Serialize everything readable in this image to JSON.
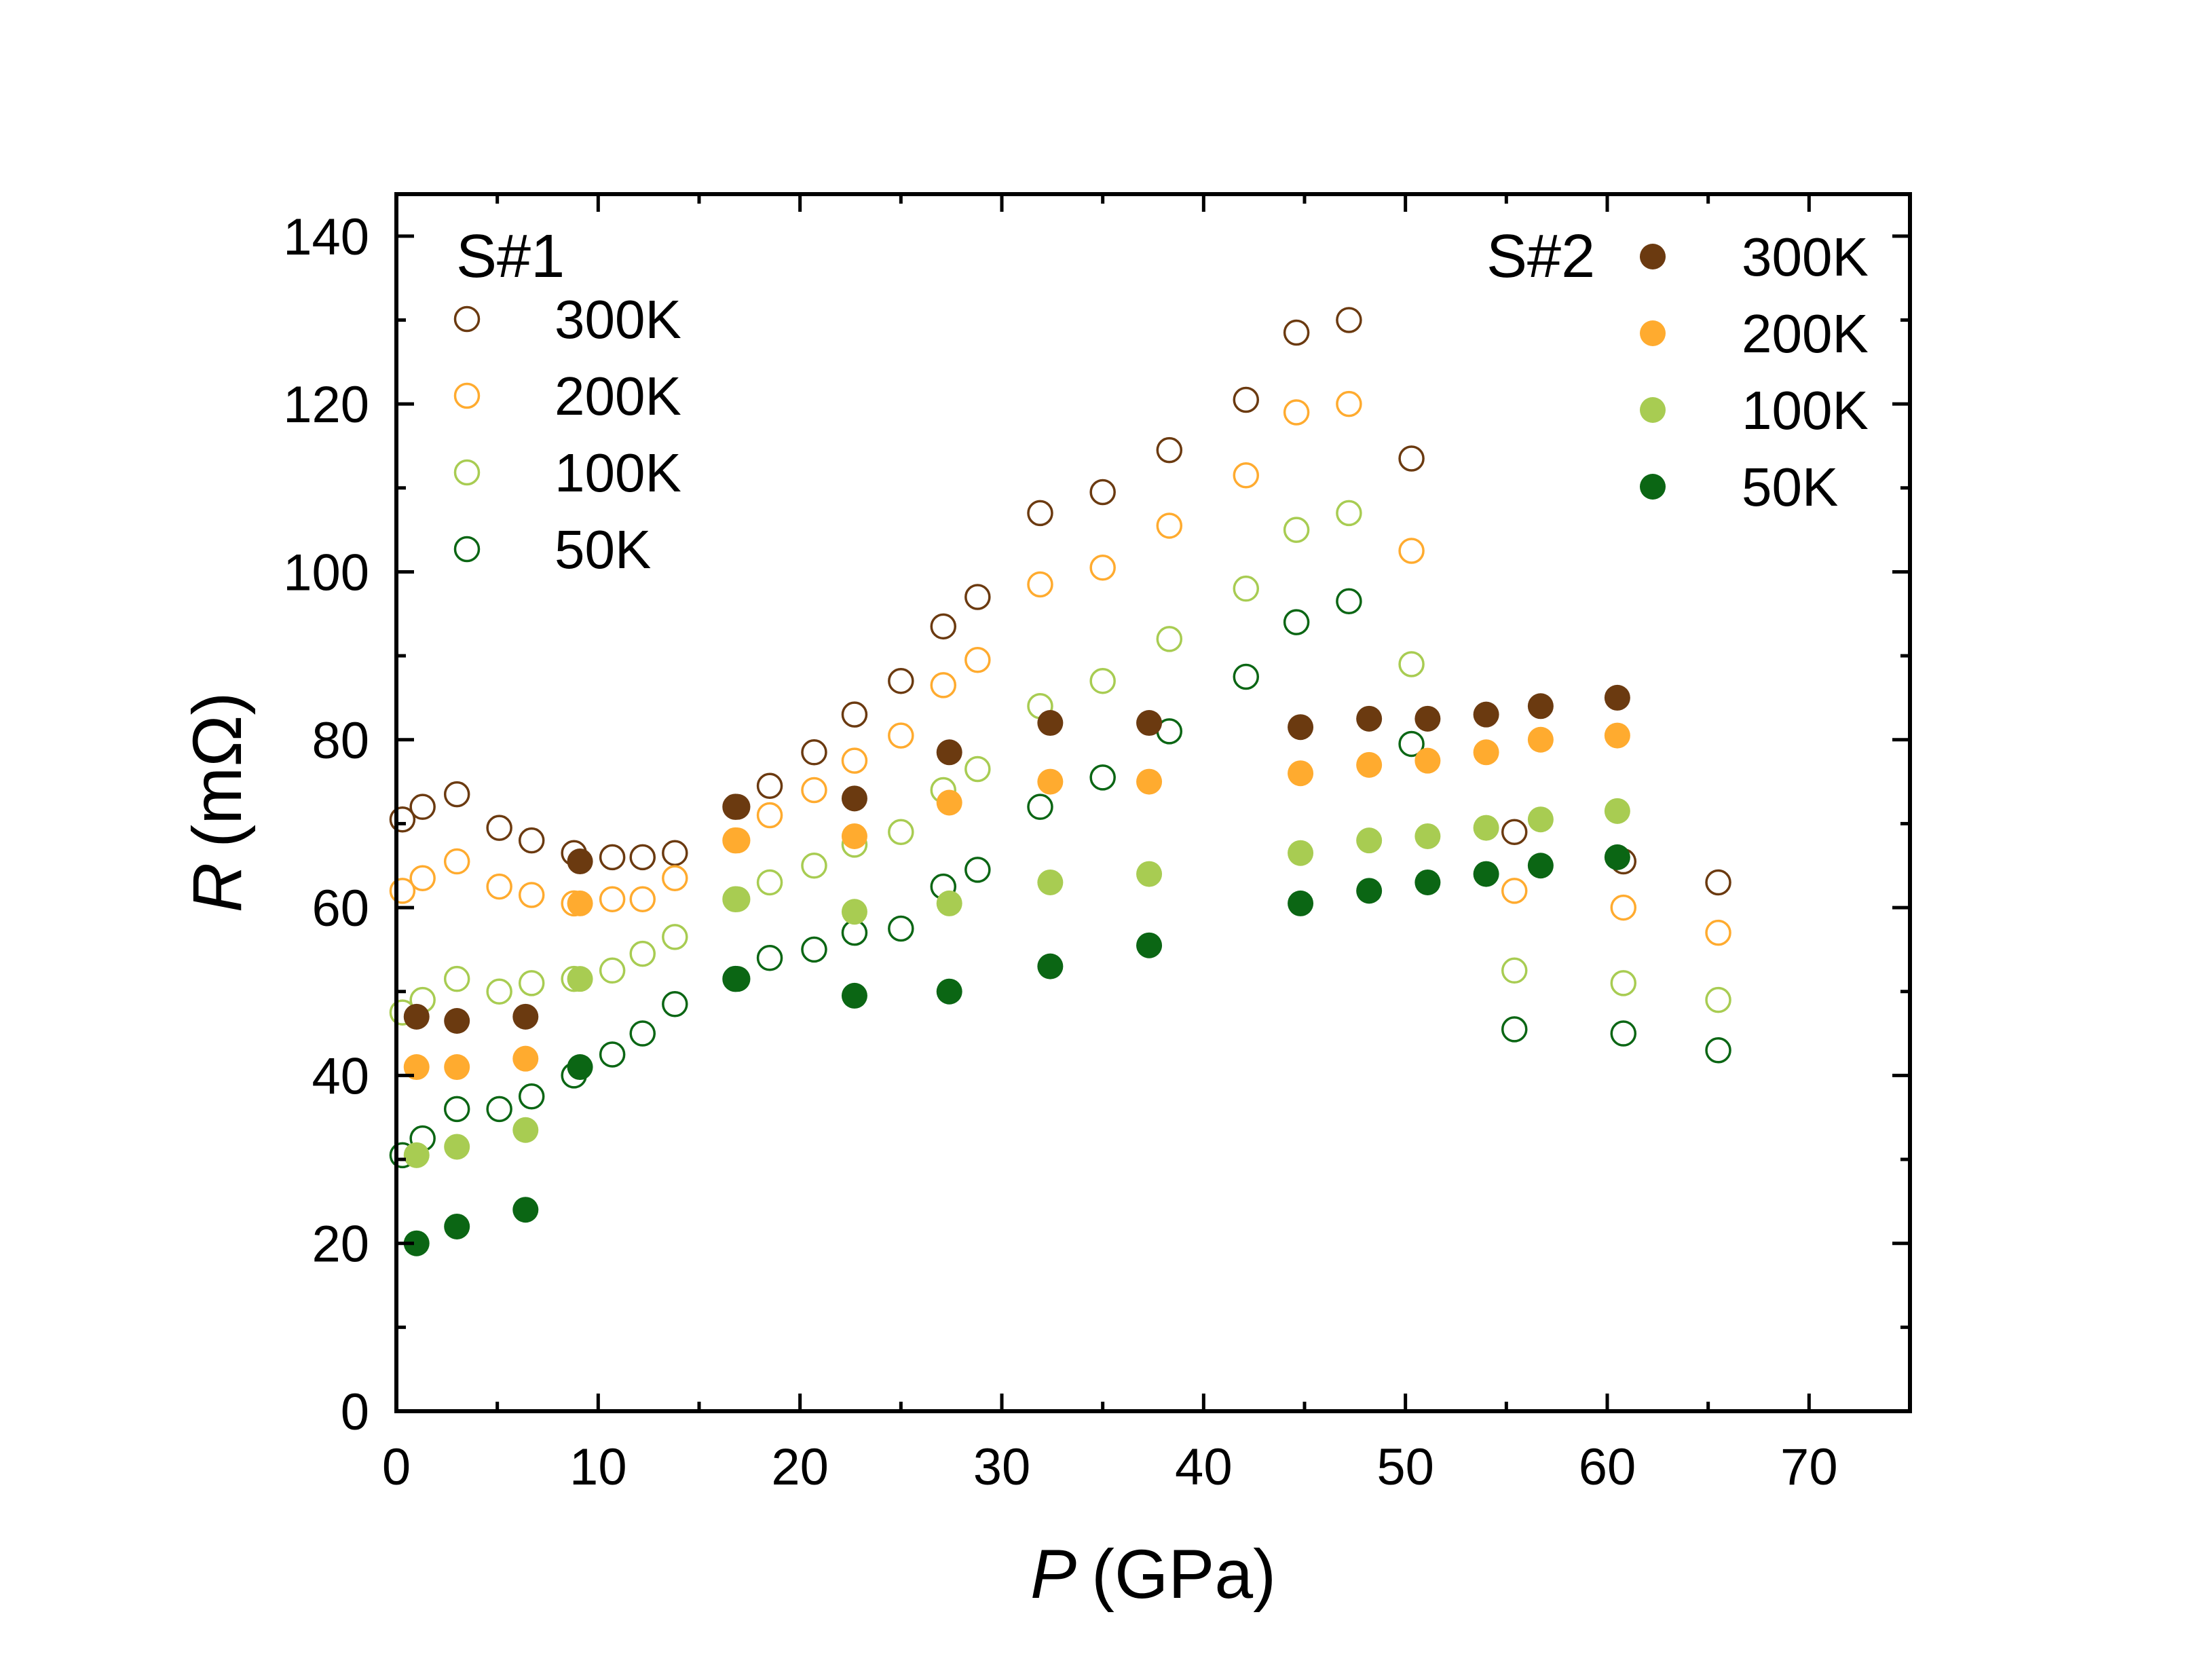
{
  "chart_data": {
    "type": "scatter",
    "title": "",
    "xlabel": {
      "symbol": "P",
      "unit": "(GPa)"
    },
    "ylabel": {
      "symbol": "R",
      "unit": "(mΩ)"
    },
    "xlim": [
      0,
      75
    ],
    "ylim": [
      0,
      145
    ],
    "x_major_ticks": [
      0,
      10,
      20,
      30,
      40,
      50,
      60,
      70
    ],
    "y_major_ticks": [
      0,
      20,
      40,
      60,
      80,
      100,
      120,
      140
    ],
    "x_tick_labels": [
      "0",
      "10",
      "20",
      "30",
      "40",
      "50",
      "60",
      "70"
    ],
    "y_tick_labels": [
      "0",
      "20",
      "40",
      "60",
      "80",
      "100",
      "120",
      "140"
    ],
    "grid": false,
    "colors": {
      "300K": "#6b3a10",
      "200K": "#ffab2f",
      "100K": "#a8cc52",
      "50K": "#0b6614"
    },
    "legends": [
      {
        "title": "S#1",
        "placement": "top-left",
        "marker": "open-circle",
        "entries": [
          "300K",
          "200K",
          "100K",
          "50K"
        ]
      },
      {
        "title": "S#2",
        "placement": "top-right",
        "marker": "filled-circle",
        "entries": [
          "300K",
          "200K",
          "100K",
          "50K"
        ]
      }
    ],
    "series": [
      {
        "name": "300K",
        "sample": "S#1",
        "marker": "open",
        "color": "#6b3a10",
        "x": [
          0.3,
          1.3,
          3.0,
          5.1,
          6.7,
          8.8,
          10.7,
          12.2,
          13.8,
          16.8,
          18.5,
          20.7,
          22.7,
          25.0,
          27.1,
          28.8,
          31.9,
          35.0,
          38.3,
          42.1,
          44.6,
          47.2,
          50.3,
          55.4,
          60.8,
          65.5
        ],
        "y": [
          70.5,
          72,
          73.5,
          69.5,
          68,
          66.5,
          66,
          66,
          66.5,
          72,
          74.5,
          78.5,
          83,
          87,
          93.5,
          97,
          107,
          109.5,
          114.5,
          120.5,
          128.5,
          130,
          113.5,
          69,
          65.5,
          63
        ]
      },
      {
        "name": "200K",
        "sample": "S#1",
        "marker": "open",
        "color": "#ffab2f",
        "x": [
          0.3,
          1.3,
          3.0,
          5.1,
          6.7,
          8.8,
          10.7,
          12.2,
          13.8,
          16.8,
          18.5,
          20.7,
          22.7,
          25.0,
          27.1,
          28.8,
          31.9,
          35.0,
          38.3,
          42.1,
          44.6,
          47.2,
          50.3,
          55.4,
          60.8,
          65.5
        ],
        "y": [
          62,
          63.5,
          65.5,
          62.5,
          61.5,
          60.5,
          61,
          61,
          63.5,
          68,
          71,
          74,
          77.5,
          80.5,
          86.5,
          89.5,
          98.5,
          100.5,
          105.5,
          111.5,
          119,
          120,
          102.5,
          62,
          60,
          57
        ]
      },
      {
        "name": "100K",
        "sample": "S#1",
        "marker": "open",
        "color": "#a8cc52",
        "x": [
          0.3,
          1.3,
          3.0,
          5.1,
          6.7,
          8.8,
          10.7,
          12.2,
          13.8,
          16.8,
          18.5,
          20.7,
          22.7,
          25.0,
          27.1,
          28.8,
          31.9,
          35.0,
          38.3,
          42.1,
          44.6,
          47.2,
          50.3,
          55.4,
          60.8,
          65.5
        ],
        "y": [
          47.5,
          49,
          51.5,
          50,
          51,
          51.5,
          52.5,
          54.5,
          56.5,
          61,
          63,
          65,
          67.5,
          69,
          74,
          76.5,
          84,
          87,
          92,
          98,
          105,
          107,
          89,
          52.5,
          51,
          49
        ]
      },
      {
        "name": "50K",
        "sample": "S#1",
        "marker": "open",
        "color": "#0b6614",
        "x": [
          0.3,
          1.3,
          3.0,
          5.1,
          6.7,
          8.8,
          10.7,
          12.2,
          13.8,
          16.8,
          18.5,
          20.7,
          22.7,
          25.0,
          27.1,
          28.8,
          31.9,
          35.0,
          38.3,
          42.1,
          44.6,
          47.2,
          50.3,
          55.4,
          60.8,
          65.5
        ],
        "y": [
          30.5,
          32.5,
          36,
          36,
          37.5,
          40,
          42.5,
          45,
          48.5,
          51.5,
          54,
          55,
          57,
          57.5,
          62.5,
          64.5,
          72,
          75.5,
          81,
          87.5,
          94,
          96.5,
          79.5,
          45.5,
          45,
          43
        ]
      },
      {
        "name": "300K",
        "sample": "S#2",
        "marker": "filled",
        "color": "#6b3a10",
        "x": [
          1.0,
          3.0,
          6.4,
          9.1,
          16.9,
          22.7,
          27.4,
          32.4,
          37.3,
          44.8,
          48.2,
          51.1,
          54.0,
          56.7,
          60.5
        ],
        "y": [
          47,
          46.5,
          47,
          65.5,
          72,
          73,
          78.5,
          82,
          82,
          81.5,
          82.5,
          82.5,
          83,
          84,
          85
        ]
      },
      {
        "name": "200K",
        "sample": "S#2",
        "marker": "filled",
        "color": "#ffab2f",
        "x": [
          1.0,
          3.0,
          6.4,
          9.1,
          16.9,
          22.7,
          27.4,
          32.4,
          37.3,
          44.8,
          48.2,
          51.1,
          54.0,
          56.7,
          60.5
        ],
        "y": [
          41,
          41,
          42,
          60.5,
          68,
          68.5,
          72.5,
          75,
          75,
          76,
          77,
          77.5,
          78.5,
          80,
          80.5
        ]
      },
      {
        "name": "100K",
        "sample": "S#2",
        "marker": "filled",
        "color": "#a8cc52",
        "x": [
          1.0,
          3.0,
          6.4,
          9.1,
          16.9,
          22.7,
          27.4,
          32.4,
          37.3,
          44.8,
          48.2,
          51.1,
          54.0,
          56.7,
          60.5
        ],
        "y": [
          30.5,
          31.5,
          33.5,
          51.5,
          61,
          59.5,
          60.5,
          63,
          64,
          66.5,
          68,
          68.5,
          69.5,
          70.5,
          71.5
        ]
      },
      {
        "name": "50K",
        "sample": "S#2",
        "marker": "filled",
        "color": "#0b6614",
        "x": [
          1.0,
          3.0,
          6.4,
          9.1,
          16.9,
          22.7,
          27.4,
          32.4,
          37.3,
          44.8,
          48.2,
          51.1,
          54.0,
          56.7,
          60.5
        ],
        "y": [
          20,
          22,
          24,
          41,
          51.5,
          49.5,
          50,
          53,
          55.5,
          60.5,
          62,
          63,
          64,
          65,
          66
        ]
      }
    ]
  }
}
